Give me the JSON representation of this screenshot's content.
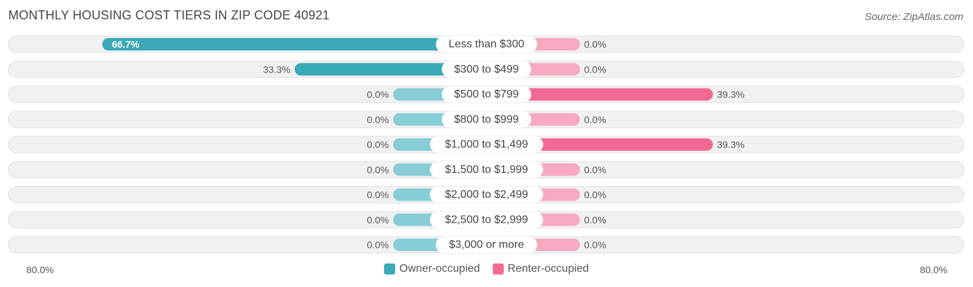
{
  "title": "MONTHLY HOUSING COST TIERS IN ZIP CODE 40921",
  "source": "Source: ZipAtlas.com",
  "colors": {
    "owner": "#3aa9b8",
    "owner_light": "#86cdd6",
    "renter": "#f26a94",
    "renter_light": "#f7a9c0",
    "row_bg": "#f1f1f1"
  },
  "legend": {
    "owner_label": "Owner-occupied",
    "renter_label": "Renter-occupied"
  },
  "axis": {
    "left_label": "80.0%",
    "right_label": "80.0%"
  },
  "chart_data": {
    "type": "bar",
    "orientation": "horizontal-diverging",
    "categories": [
      "Less than $300",
      "$300 to $499",
      "$500 to $799",
      "$800 to $999",
      "$1,000 to $1,499",
      "$1,500 to $1,999",
      "$2,000 to $2,499",
      "$2,500 to $2,999",
      "$3,000 or more"
    ],
    "series": [
      {
        "name": "Owner-occupied",
        "values": [
          66.7,
          33.3,
          0.0,
          0.0,
          0.0,
          0.0,
          0.0,
          0.0,
          0.0
        ],
        "labels": [
          "66.7%",
          "33.3%",
          "0.0%",
          "0.0%",
          "0.0%",
          "0.0%",
          "0.0%",
          "0.0%",
          "0.0%"
        ]
      },
      {
        "name": "Renter-occupied",
        "values": [
          0.0,
          0.0,
          39.3,
          0.0,
          39.3,
          0.0,
          0.0,
          0.0,
          0.0
        ],
        "labels": [
          "0.0%",
          "0.0%",
          "39.3%",
          "0.0%",
          "39.3%",
          "0.0%",
          "0.0%",
          "0.0%",
          "0.0%"
        ]
      }
    ],
    "xlim": [
      -80,
      80
    ],
    "legend_position": "bottom-center"
  }
}
